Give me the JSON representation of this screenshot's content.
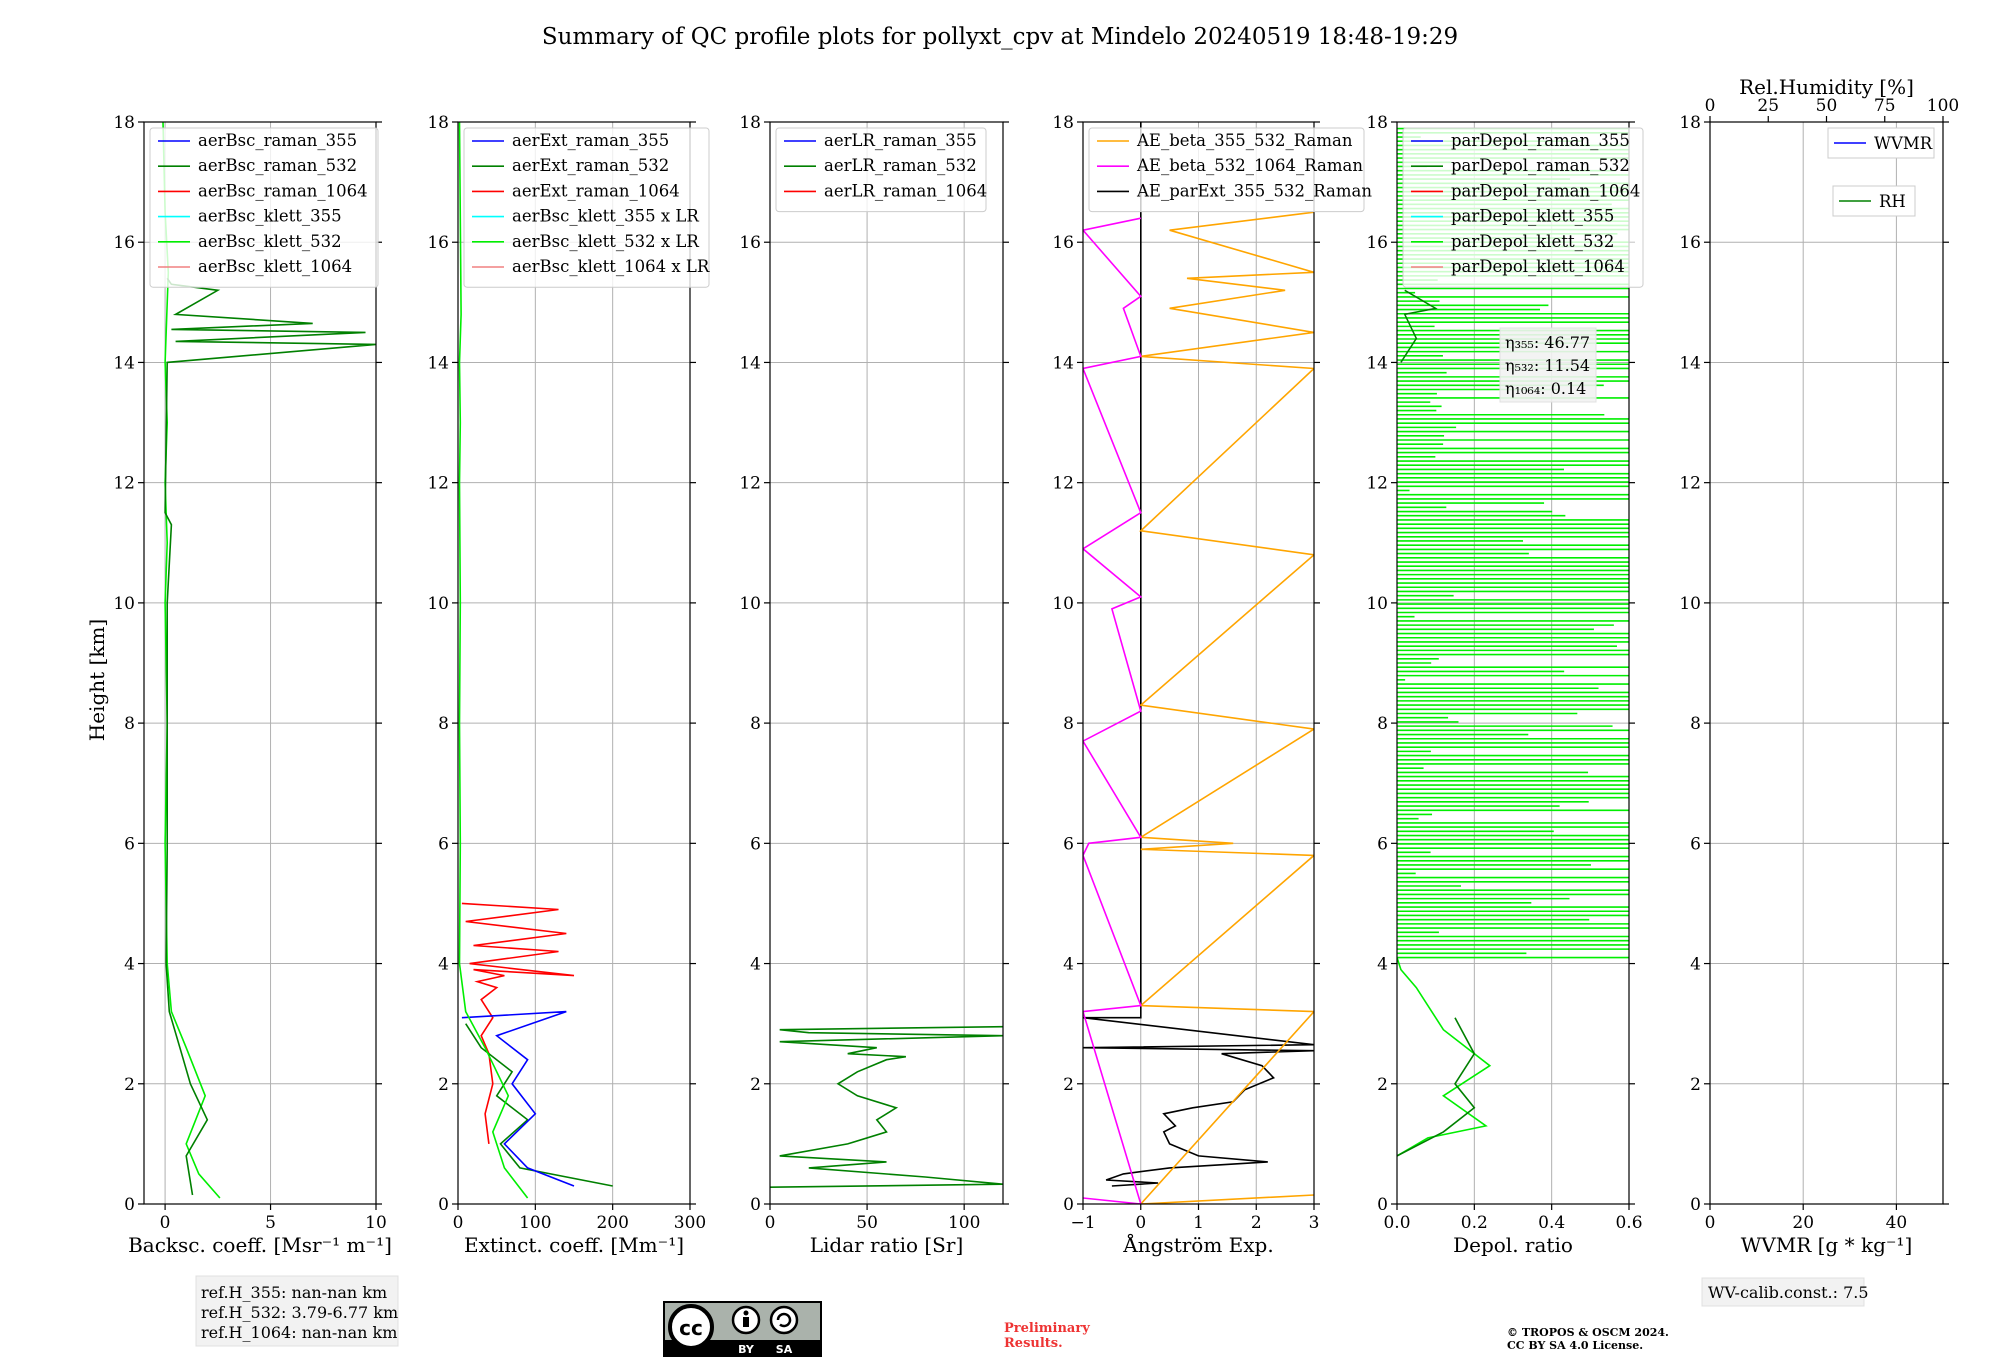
{
  "title": "Summary of QC profile plots for pollyxt_cpv at Mindelo 20240519 18:48-19:29",
  "ylabel": "Height [km]",
  "y_ticks": [
    "0",
    "2",
    "4",
    "6",
    "8",
    "10",
    "12",
    "14",
    "16",
    "18"
  ],
  "colors": {
    "blue": "#0000ff",
    "green": "#008000",
    "red": "#ff0000",
    "cyan": "#00ffff",
    "lime": "#00ee00",
    "salmon": "#f08080",
    "orange": "#ffa500",
    "magenta": "#ff00ff",
    "black": "#000000"
  },
  "chart_data": [
    {
      "id": "bsc",
      "type": "line",
      "xlabel": "Backsc. coeff. [Msr⁻¹ m⁻¹]",
      "xlim": [
        -1,
        10
      ],
      "ylim": [
        0,
        18
      ],
      "xticks": [
        {
          "v": 0,
          "t": "0"
        },
        {
          "v": 5,
          "t": "5"
        },
        {
          "v": 10,
          "t": "10"
        }
      ],
      "legend": [
        "aerBsc_raman_355",
        "aerBsc_raman_532",
        "aerBsc_raman_1064",
        "aerBsc_klett_355",
        "aerBsc_klett_532",
        "aerBsc_klett_1064"
      ],
      "legend_colors": [
        "blue",
        "green",
        "red",
        "cyan",
        "lime",
        "salmon"
      ],
      "series": [
        {
          "name": "aerBsc_klett_532",
          "color": "lime",
          "x": [
            2.6,
            1.6,
            1.0,
            1.9,
            1.0,
            0.3,
            0.1,
            0.0,
            0.1,
            0.0,
            0.1,
            0.0,
            0.1,
            0.0,
            0.15,
            0.0,
            -0.1
          ],
          "y": [
            0.1,
            0.5,
            1.0,
            1.8,
            2.6,
            3.2,
            4.0,
            6.0,
            8.0,
            10.0,
            11.0,
            12.0,
            13.0,
            14.0,
            15.5,
            16.5,
            18.0
          ]
        },
        {
          "name": "aerBsc_raman_532",
          "color": "green",
          "x": [
            1.3,
            1.0,
            2.0,
            1.2,
            0.7,
            0.2,
            0.05,
            0.1,
            0.1,
            0.1,
            0.3,
            0.0,
            0.1,
            10.0,
            0.5,
            9.5,
            0.3,
            7.0,
            0.5,
            2.5,
            0.3,
            0.1
          ],
          "y": [
            0.15,
            0.8,
            1.4,
            2.0,
            2.6,
            3.2,
            4.0,
            5.9,
            8.0,
            10.0,
            11.3,
            11.5,
            14.0,
            14.3,
            14.35,
            14.5,
            14.55,
            14.65,
            14.8,
            15.2,
            15.3,
            15.4
          ]
        }
      ]
    },
    {
      "id": "ext",
      "type": "line",
      "xlabel": "Extinct. coeff. [Mm⁻¹]",
      "xlim": [
        0,
        300
      ],
      "ylim": [
        0,
        18
      ],
      "xticks": [
        {
          "v": 0,
          "t": "0"
        },
        {
          "v": 100,
          "t": "100"
        },
        {
          "v": 200,
          "t": "200"
        },
        {
          "v": 300,
          "t": "300"
        }
      ],
      "legend": [
        "aerExt_raman_355",
        "aerExt_raman_532",
        "aerExt_raman_1064",
        "aerBsc_klett_355 x LR",
        "aerBsc_klett_532 x LR",
        "aerBsc_klett_1064 x LR"
      ],
      "legend_colors": [
        "blue",
        "green",
        "red",
        "cyan",
        "lime",
        "salmon"
      ],
      "series": [
        {
          "name": "aerExt_raman_1064",
          "color": "red",
          "x": [
            40,
            35,
            45,
            40,
            30,
            45,
            30,
            50,
            25,
            60,
            20,
            150,
            15,
            130,
            20,
            140,
            10,
            130,
            5
          ],
          "y": [
            1.0,
            1.5,
            2.0,
            2.5,
            2.8,
            3.1,
            3.4,
            3.6,
            3.7,
            3.8,
            3.9,
            3.8,
            4.0,
            4.2,
            4.3,
            4.5,
            4.7,
            4.9,
            5.0
          ]
        },
        {
          "name": "aerExt_raman_532",
          "color": "green",
          "x": [
            200,
            80,
            55,
            90,
            50,
            70,
            30,
            10
          ],
          "y": [
            0.3,
            0.6,
            1.0,
            1.4,
            1.8,
            2.2,
            2.6,
            3.0
          ]
        },
        {
          "name": "aerExt_raman_355",
          "color": "blue",
          "x": [
            150,
            90,
            60,
            100,
            70,
            90,
            50,
            140,
            5
          ],
          "y": [
            0.3,
            0.6,
            1.0,
            1.5,
            2.0,
            2.4,
            2.8,
            3.2,
            3.1
          ]
        },
        {
          "name": "aerBsc_klett_532 x LR",
          "color": "lime",
          "x": [
            90,
            60,
            45,
            65,
            35,
            10,
            2,
            3,
            2,
            3,
            2,
            3,
            2,
            4,
            2
          ],
          "y": [
            0.1,
            0.6,
            1.2,
            1.8,
            2.6,
            3.2,
            4.0,
            6.0,
            8.0,
            10.0,
            12.0,
            13.0,
            14.0,
            14.8,
            18.0
          ]
        }
      ]
    },
    {
      "id": "lr",
      "type": "line",
      "xlabel": "Lidar ratio [Sr]",
      "xlim": [
        0,
        120
      ],
      "ylim": [
        0,
        18
      ],
      "xticks": [
        {
          "v": 0,
          "t": "0"
        },
        {
          "v": 50,
          "t": "50"
        },
        {
          "v": 100,
          "t": "100"
        }
      ],
      "legend": [
        "aerLR_raman_355",
        "aerLR_raman_532",
        "aerLR_raman_1064"
      ],
      "legend_colors": [
        "blue",
        "green",
        "red"
      ],
      "series": [
        {
          "name": "aerLR_raman_532",
          "color": "green",
          "x": [
            0,
            120,
            80,
            20,
            60,
            5,
            40,
            60,
            55,
            65,
            45,
            35,
            45,
            60,
            70,
            40,
            55,
            5,
            120,
            20,
            5,
            120
          ],
          "y": [
            0.28,
            0.33,
            0.45,
            0.6,
            0.7,
            0.8,
            1.0,
            1.2,
            1.4,
            1.6,
            1.8,
            2.0,
            2.2,
            2.4,
            2.45,
            2.5,
            2.6,
            2.7,
            2.8,
            2.85,
            2.9,
            2.95
          ]
        }
      ]
    },
    {
      "id": "ae",
      "type": "line",
      "xlabel": "Ångström Exp.",
      "xlim": [
        -1,
        3
      ],
      "ylim": [
        0,
        18
      ],
      "xticks": [
        {
          "v": -1,
          "t": "−1"
        },
        {
          "v": 0,
          "t": "0"
        },
        {
          "v": 1,
          "t": "1"
        },
        {
          "v": 2,
          "t": "2"
        },
        {
          "v": 3,
          "t": "3"
        }
      ],
      "legend": [
        "AE_beta_355_532_Raman",
        "AE_beta_532_1064_Raman",
        "AE_parExt_355_532_Raman"
      ],
      "legend_colors": [
        "orange",
        "magenta",
        "black"
      ],
      "series": [
        {
          "name": "AE_parExt_355_532_Raman",
          "color": "black",
          "x": [
            -0.5,
            0.3,
            -0.6,
            -0.3,
            0.5,
            2.2,
            1.0,
            0.5,
            0.4,
            0.6,
            0.4,
            0.9,
            1.6,
            1.8,
            2.3,
            2.1,
            1.4,
            3.0,
            -1.0,
            3.0,
            -1.0,
            0.0,
            0.0
          ],
          "y": [
            0.3,
            0.35,
            0.4,
            0.5,
            0.6,
            0.7,
            0.8,
            1.0,
            1.2,
            1.3,
            1.5,
            1.6,
            1.7,
            1.9,
            2.1,
            2.3,
            2.5,
            2.55,
            2.6,
            2.65,
            3.1,
            3.1,
            18.0
          ]
        },
        {
          "name": "AE_beta_355_532_Raman",
          "color": "orange",
          "x": [
            3.0,
            0.0,
            3.0,
            0.0,
            3.0,
            0.0,
            1.6,
            0.0,
            3.0,
            0.0,
            3.0,
            0.0,
            3.0,
            0.0,
            3.0,
            0.5,
            2.5,
            0.8,
            3.0,
            0.5,
            3.0
          ],
          "y": [
            0.15,
            0.0,
            3.2,
            3.3,
            5.8,
            5.9,
            6.0,
            6.1,
            7.9,
            8.3,
            10.8,
            11.2,
            13.9,
            14.1,
            14.5,
            14.9,
            15.2,
            15.4,
            15.5,
            16.2,
            16.5
          ]
        },
        {
          "name": "AE_beta_532_1064_Raman",
          "color": "magenta",
          "x": [
            -1.0,
            0.0,
            -1.0,
            0.0,
            -1.0,
            -0.9,
            0.0,
            -1.0,
            0.0,
            -0.5,
            0.0,
            -1.0,
            0.0,
            -1.0,
            0.0,
            -0.3,
            0.0,
            -1.0,
            0.0
          ],
          "y": [
            0.1,
            0.0,
            3.2,
            3.3,
            5.8,
            6.0,
            6.1,
            7.7,
            8.2,
            9.9,
            10.1,
            10.9,
            11.5,
            13.9,
            14.1,
            14.9,
            15.1,
            16.2,
            16.4
          ]
        }
      ]
    },
    {
      "id": "depol",
      "type": "line",
      "xlabel": "Depol. ratio",
      "xlim": [
        0,
        0.6
      ],
      "ylim": [
        0,
        18
      ],
      "xticks": [
        {
          "v": 0,
          "t": "0.0"
        },
        {
          "v": 0.2,
          "t": "0.2"
        },
        {
          "v": 0.4,
          "t": "0.4"
        },
        {
          "v": 0.6,
          "t": "0.6"
        }
      ],
      "legend": [
        "parDepol_raman_355",
        "parDepol_raman_532",
        "parDepol_raman_1064",
        "parDepol_klett_355",
        "parDepol_klett_532",
        "parDepol_klett_1064"
      ],
      "legend_colors": [
        "blue",
        "green",
        "red",
        "cyan",
        "lime",
        "salmon"
      ],
      "eta_labels": [
        "η₃₅₅: 46.77",
        "η₅₃₂: 11.54",
        "η₁₀₆₄: 0.14"
      ],
      "series": [
        {
          "name": "parDepol_klett_532",
          "color": "lime",
          "x": [
            0.0,
            0.08,
            0.23,
            0.12,
            0.24,
            0.12,
            0.05,
            0.01,
            0.0
          ],
          "y": [
            0.8,
            1.1,
            1.3,
            1.8,
            2.3,
            2.9,
            3.6,
            3.9,
            4.1
          ]
        },
        {
          "name": "parDepol_raman_532",
          "color": "green",
          "x": [
            0.0,
            0.12,
            0.2,
            0.15,
            0.2,
            0.15
          ],
          "y": [
            0.8,
            1.2,
            1.6,
            2.0,
            2.5,
            3.1
          ]
        }
      ]
    },
    {
      "id": "wv",
      "type": "line",
      "xlabel": "WVMR [g * kg⁻¹]",
      "xlim": [
        0,
        50
      ],
      "ylim": [
        0,
        18
      ],
      "xticks": [
        {
          "v": 0,
          "t": "0"
        },
        {
          "v": 20,
          "t": "20"
        },
        {
          "v": 40,
          "t": "40"
        }
      ],
      "top_label": "Rel.Humidity [%]",
      "top_ticks": [
        "0",
        "25",
        "50",
        "75",
        "100"
      ],
      "legend": [
        "WVMR",
        "RH"
      ],
      "legend_colors": [
        "blue",
        "green"
      ],
      "series": []
    }
  ],
  "footer": {
    "refh": [
      "ref.H_355: nan-nan km",
      "ref.H_532: 3.79-6.77 km",
      "ref.H_1064: nan-nan km"
    ],
    "license_badge": [
      "cc",
      "BY",
      "SA"
    ],
    "preliminary": [
      "Preliminary",
      "Results."
    ],
    "copyright": [
      "© TROPOS & OSCM 2024.",
      "CC BY SA 4.0 License."
    ],
    "wv_calib": "WV-calib.const.: 7.5"
  }
}
